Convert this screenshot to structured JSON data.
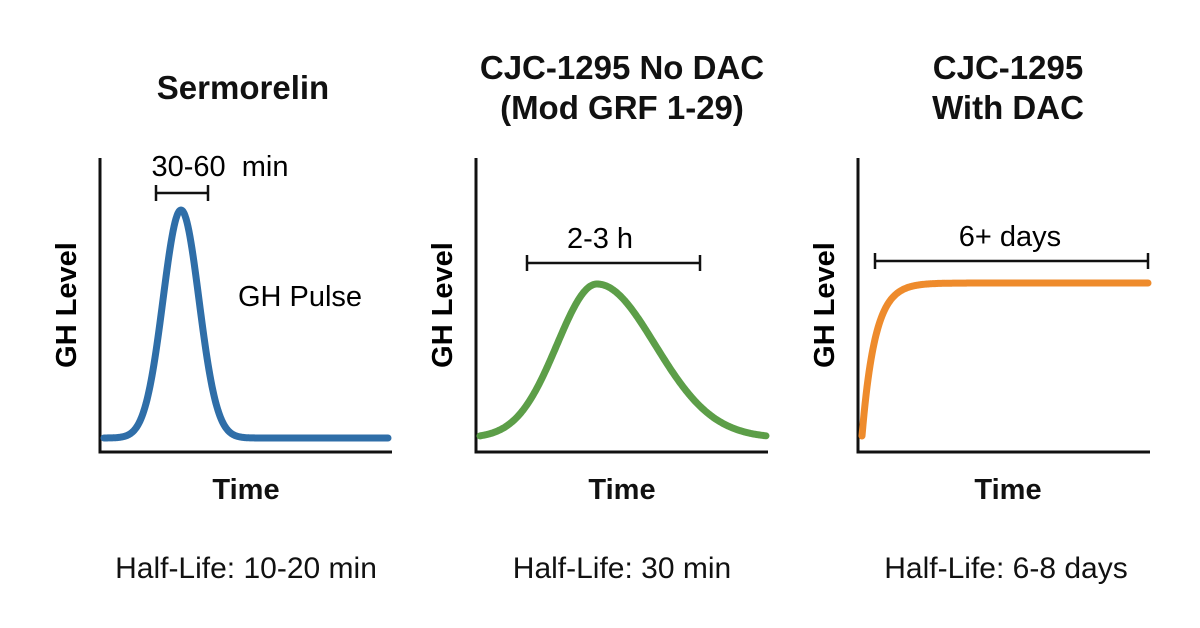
{
  "chart_data": [
    {
      "type": "line",
      "title": "Sermorelin",
      "xlabel": "Time",
      "ylabel": "GH Level",
      "bracket_label": "30-60  min",
      "annotation": "GH Pulse",
      "footer": "Half-Life: 10-20 min",
      "color": "#2f6ea8",
      "curve": "pulse"
    },
    {
      "type": "line",
      "title": "CJC-1295 No DAC\n(Mod GRF 1-29)",
      "xlabel": "Time",
      "ylabel": "GH Level",
      "bracket_label": "2-3 h",
      "footer": "Half-Life: 30 min",
      "color": "#5c9e48",
      "curve": "hump"
    },
    {
      "type": "line",
      "title": "CJC-1295\nWith DAC",
      "xlabel": "Time",
      "ylabel": "GH Level",
      "bracket_label": "6+ days",
      "footer": "Half-Life: 6-8 days",
      "color": "#ee8b2c",
      "curve": "plateau"
    }
  ]
}
